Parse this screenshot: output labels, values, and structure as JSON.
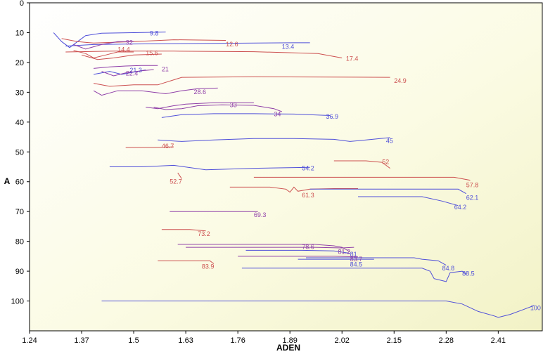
{
  "chart_data": {
    "type": "line",
    "xlabel": "ADEN",
    "ylabel": "A",
    "xlim": [
      1.24,
      2.52
    ],
    "ylim": [
      0,
      110
    ],
    "y_inverted": true,
    "xticks": [
      "1.24",
      "1.37",
      "1.5",
      "1.63",
      "1.76",
      "1.89",
      "2.02",
      "2.15",
      "2.28",
      "2.41"
    ],
    "yticks": [
      "0",
      "10",
      "20",
      "30",
      "40",
      "50",
      "60",
      "70",
      "80",
      "90",
      "100"
    ],
    "series": [
      {
        "label": "9.8",
        "color": "#4f4fd9",
        "points": [
          [
            1.3,
            10
          ],
          [
            1.32,
            13
          ],
          [
            1.34,
            15
          ],
          [
            1.36,
            13
          ],
          [
            1.38,
            11
          ],
          [
            1.42,
            10.2
          ],
          [
            1.5,
            10
          ],
          [
            1.58,
            9.8
          ]
        ],
        "label_at": [
          1.54,
          11
        ]
      },
      {
        "label": "12.6",
        "color": "#cc4f4f",
        "points": [
          [
            1.32,
            12
          ],
          [
            1.36,
            13
          ],
          [
            1.4,
            13.5
          ],
          [
            1.5,
            13
          ],
          [
            1.6,
            12.4
          ],
          [
            1.73,
            12.6
          ]
        ],
        "label_at": [
          1.73,
          14.6
        ]
      },
      {
        "label": "13.4",
        "color": "#4f4fd9",
        "points": [
          [
            1.33,
            14.5
          ],
          [
            1.4,
            14
          ],
          [
            1.5,
            13.8
          ],
          [
            1.7,
            13.6
          ],
          [
            1.9,
            13.4
          ],
          [
            1.94,
            13.4
          ]
        ],
        "label_at": [
          1.87,
          15.4
        ]
      },
      {
        "label": "17.4",
        "color": "#cc4f4f",
        "points": [
          [
            1.33,
            16.5
          ],
          [
            1.45,
            16.2
          ],
          [
            1.6,
            16.2
          ],
          [
            1.8,
            16.4
          ],
          [
            1.96,
            17
          ],
          [
            2.02,
            18.5
          ]
        ],
        "label_at": [
          2.03,
          19.4
        ]
      },
      {
        "label": "32",
        "color": "#8f3fa8",
        "points": [
          [
            1.35,
            14
          ],
          [
            1.38,
            15.5
          ],
          [
            1.42,
            14
          ],
          [
            1.46,
            13
          ],
          [
            1.5,
            13
          ]
        ],
        "label_at": [
          1.48,
          14
        ]
      },
      {
        "label": "14.4",
        "color": "#cc4f4f",
        "points": [
          [
            1.35,
            16
          ],
          [
            1.38,
            17
          ],
          [
            1.4,
            18.5
          ],
          [
            1.43,
            17.5
          ],
          [
            1.46,
            16.5
          ],
          [
            1.5,
            16.5
          ]
        ],
        "label_at": [
          1.46,
          16.4
        ]
      },
      {
        "label": "15.6",
        "color": "#cc4f4f",
        "points": [
          [
            1.37,
            17.5
          ],
          [
            1.41,
            19
          ],
          [
            1.45,
            18.5
          ],
          [
            1.5,
            17.5
          ],
          [
            1.57,
            17.2
          ]
        ],
        "label_at": [
          1.53,
          17.6
        ]
      },
      {
        "label": "21.3",
        "color": "#4f4fd9",
        "points": [
          [
            1.4,
            24
          ],
          [
            1.44,
            23
          ],
          [
            1.47,
            24
          ],
          [
            1.51,
            23
          ],
          [
            1.53,
            22.5
          ]
        ],
        "label_at": [
          1.49,
          23.3
        ]
      },
      {
        "label": "21",
        "color": "#8f3fa8",
        "points": [
          [
            1.4,
            22
          ],
          [
            1.44,
            21.5
          ],
          [
            1.48,
            21.2
          ],
          [
            1.52,
            21
          ],
          [
            1.56,
            21
          ]
        ],
        "label_at": [
          1.57,
          23
        ]
      },
      {
        "label": "22.4",
        "color": "#8f3fa8",
        "points": [
          [
            1.42,
            23
          ],
          [
            1.45,
            24.5
          ],
          [
            1.48,
            23.5
          ],
          [
            1.52,
            22.8
          ],
          [
            1.55,
            22.4
          ]
        ],
        "label_at": [
          1.48,
          24.4
        ]
      },
      {
        "label": "24.9",
        "color": "#cc4f4f",
        "points": [
          [
            1.4,
            27
          ],
          [
            1.44,
            28
          ],
          [
            1.5,
            27.5
          ],
          [
            1.56,
            27.5
          ],
          [
            1.62,
            25
          ],
          [
            1.8,
            24.8
          ],
          [
            2.0,
            24.9
          ],
          [
            2.14,
            25
          ]
        ],
        "label_at": [
          2.15,
          26.9
        ]
      },
      {
        "label": "28.6",
        "color": "#8f3fa8",
        "points": [
          [
            1.4,
            29.5
          ],
          [
            1.42,
            31
          ],
          [
            1.46,
            29.5
          ],
          [
            1.52,
            29.5
          ],
          [
            1.58,
            30.5
          ],
          [
            1.62,
            29.5
          ],
          [
            1.66,
            28.8
          ],
          [
            1.71,
            28.6
          ]
        ],
        "label_at": [
          1.65,
          30.6
        ]
      },
      {
        "label": "33",
        "color": "#8f3fa8",
        "points": [
          [
            1.53,
            35
          ],
          [
            1.56,
            35.5
          ],
          [
            1.6,
            34.5
          ],
          [
            1.63,
            34
          ],
          [
            1.7,
            33.5
          ],
          [
            1.8,
            33.5
          ]
        ],
        "label_at": [
          1.74,
          35
        ]
      },
      {
        "label": "34",
        "color": "#8f3fa8",
        "points": [
          [
            1.55,
            35
          ],
          [
            1.58,
            35.8
          ],
          [
            1.62,
            35.5
          ],
          [
            1.66,
            34.5
          ],
          [
            1.72,
            34.2
          ],
          [
            1.8,
            34.4
          ],
          [
            1.85,
            35.5
          ],
          [
            1.87,
            36.5
          ]
        ],
        "label_at": [
          1.85,
          38
        ]
      },
      {
        "label": "36.9",
        "color": "#4f4fd9",
        "points": [
          [
            1.57,
            38.5
          ],
          [
            1.62,
            37.5
          ],
          [
            1.7,
            37.2
          ],
          [
            1.8,
            37.2
          ],
          [
            1.9,
            37.3
          ],
          [
            1.99,
            37.8
          ]
        ],
        "label_at": [
          1.98,
          38.9
        ]
      },
      {
        "label": "45",
        "color": "#4f4fd9",
        "points": [
          [
            1.56,
            46
          ],
          [
            1.62,
            46.5
          ],
          [
            1.7,
            46
          ],
          [
            1.8,
            45.5
          ],
          [
            1.9,
            45.5
          ],
          [
            2.0,
            45.8
          ],
          [
            2.04,
            46.5
          ],
          [
            2.08,
            46
          ],
          [
            2.14,
            45.2
          ]
        ],
        "label_at": [
          2.13,
          47
        ]
      },
      {
        "label": "46.7",
        "color": "#cc4f4f",
        "points": [
          [
            1.48,
            48.5
          ],
          [
            1.55,
            48.5
          ],
          [
            1.6,
            48.3
          ]
        ],
        "label_at": [
          1.57,
          48.7
        ]
      },
      {
        "label": "52",
        "color": "#cc4f4f",
        "points": [
          [
            2.0,
            53
          ],
          [
            2.08,
            53
          ],
          [
            2.12,
            53.5
          ],
          [
            2.14,
            55.5
          ]
        ],
        "label_at": [
          2.12,
          54
        ]
      },
      {
        "label": "54.2",
        "color": "#4f4fd9",
        "points": [
          [
            1.44,
            55
          ],
          [
            1.52,
            55
          ],
          [
            1.6,
            54.5
          ],
          [
            1.68,
            56
          ],
          [
            1.8,
            55.5
          ],
          [
            1.94,
            55.2
          ]
        ],
        "label_at": [
          1.92,
          56.2
        ]
      },
      {
        "label": "52.7",
        "color": "#cc4f4f",
        "points": [
          [
            1.61,
            57
          ],
          [
            1.62,
            59
          ]
        ],
        "label_at": [
          1.59,
          60.7
        ]
      },
      {
        "label": "57.8",
        "color": "#cc4f4f",
        "points": [
          [
            1.8,
            58.5
          ],
          [
            2.0,
            58.5
          ],
          [
            2.2,
            58.5
          ],
          [
            2.3,
            58.5
          ],
          [
            2.34,
            59.5
          ]
        ],
        "label_at": [
          2.33,
          61.8
        ]
      },
      {
        "label": "61.3",
        "color": "#cc4f4f",
        "points": [
          [
            1.74,
            61.8
          ],
          [
            1.84,
            61.8
          ],
          [
            1.88,
            62.5
          ],
          [
            1.89,
            63.5
          ],
          [
            1.9,
            61.8
          ],
          [
            1.91,
            63.2
          ],
          [
            1.94,
            62.5
          ],
          [
            2.0,
            62.3
          ],
          [
            2.06,
            62.3
          ]
        ],
        "label_at": [
          1.92,
          65.3
        ]
      },
      {
        "label": "62.1",
        "color": "#4f4fd9",
        "points": [
          [
            1.94,
            62.5
          ],
          [
            2.1,
            62.5
          ],
          [
            2.25,
            62.5
          ],
          [
            2.31,
            62.5
          ],
          [
            2.33,
            64
          ]
        ],
        "label_at": [
          2.33,
          66.1
        ]
      },
      {
        "label": "64.2",
        "color": "#4f4fd9",
        "points": [
          [
            2.06,
            65
          ],
          [
            2.15,
            65
          ],
          [
            2.22,
            65
          ],
          [
            2.27,
            66.5
          ],
          [
            2.31,
            68
          ]
        ],
        "label_at": [
          2.3,
          69.2
        ]
      },
      {
        "label": "69.3",
        "color": "#8f3fa8",
        "points": [
          [
            1.59,
            70
          ],
          [
            1.7,
            70
          ],
          [
            1.8,
            70
          ],
          [
            1.81,
            70
          ]
        ],
        "label_at": [
          1.8,
          71.8
        ]
      },
      {
        "label": "73.2",
        "color": "#cc4f4f",
        "points": [
          [
            1.57,
            76
          ],
          [
            1.64,
            76
          ],
          [
            1.68,
            76.5
          ]
        ],
        "label_at": [
          1.66,
          78.2
        ]
      },
      {
        "label": "78.6",
        "color": "#8f3fa8",
        "points": [
          [
            1.61,
            81
          ],
          [
            1.8,
            81
          ],
          [
            1.95,
            81
          ],
          [
            2.0,
            81.5
          ],
          [
            2.02,
            82
          ],
          [
            2.04,
            83.5
          ]
        ],
        "label_at": [
          1.92,
          82.6
        ]
      },
      {
        "label": "81.2",
        "color": "#8f3fa8",
        "points": [
          [
            1.63,
            82
          ],
          [
            1.8,
            82
          ],
          [
            1.95,
            82
          ],
          [
            2.02,
            82.2
          ],
          [
            2.05,
            82
          ]
        ],
        "label_at": [
          2.01,
          84.2
        ]
      },
      {
        "label": "81",
        "color": "#4f4fd9",
        "points": [
          [
            1.78,
            83
          ],
          [
            1.92,
            83
          ],
          [
            2.0,
            83.2
          ],
          [
            2.04,
            84
          ]
        ],
        "label_at": [
          2.04,
          85
        ]
      },
      {
        "label": "83.7",
        "color": "#8f3fa8",
        "points": [
          [
            1.76,
            85
          ],
          [
            1.9,
            85
          ],
          [
            2.0,
            85
          ],
          [
            2.06,
            85.2
          ]
        ],
        "label_at": [
          2.04,
          86.7
        ]
      },
      {
        "label": "84.5",
        "color": "#4f4fd9",
        "points": [
          [
            1.91,
            86
          ],
          [
            2.05,
            86
          ],
          [
            2.1,
            86
          ]
        ],
        "label_at": [
          2.04,
          88.5
        ]
      },
      {
        "label": "83.9",
        "color": "#cc4f4f",
        "points": [
          [
            1.56,
            86.5
          ],
          [
            1.64,
            86.5
          ],
          [
            1.69,
            86.5
          ],
          [
            1.7,
            87.5
          ]
        ],
        "label_at": [
          1.67,
          89.1
        ]
      },
      {
        "label": "84.8",
        "color": "#4f4fd9",
        "points": [
          [
            1.93,
            85.5
          ],
          [
            2.1,
            85.5
          ],
          [
            2.2,
            85.5
          ],
          [
            2.22,
            86
          ],
          [
            2.26,
            86.5
          ],
          [
            2.28,
            88
          ]
        ],
        "label_at": [
          2.27,
          89.8
        ]
      },
      {
        "label": "88.5",
        "color": "#4f4fd9",
        "points": [
          [
            1.77,
            89
          ],
          [
            1.95,
            89
          ],
          [
            2.15,
            89
          ],
          [
            2.22,
            89
          ],
          [
            2.24,
            90
          ],
          [
            2.25,
            92.5
          ],
          [
            2.28,
            93.5
          ],
          [
            2.29,
            90.5
          ],
          [
            2.32,
            90
          ],
          [
            2.33,
            91
          ]
        ],
        "label_at": [
          2.32,
          91.5
        ]
      },
      {
        "label": "100",
        "color": "#4f4fd9",
        "points": [
          [
            1.42,
            100
          ],
          [
            1.7,
            100
          ],
          [
            2.0,
            100
          ],
          [
            2.2,
            100
          ],
          [
            2.28,
            100
          ],
          [
            2.32,
            101
          ],
          [
            2.36,
            103.5
          ],
          [
            2.4,
            105
          ],
          [
            2.41,
            105.5
          ],
          [
            2.44,
            104.5
          ],
          [
            2.47,
            103
          ],
          [
            2.5,
            101.5
          ]
        ],
        "label_at": [
          2.49,
          103
        ]
      }
    ]
  }
}
